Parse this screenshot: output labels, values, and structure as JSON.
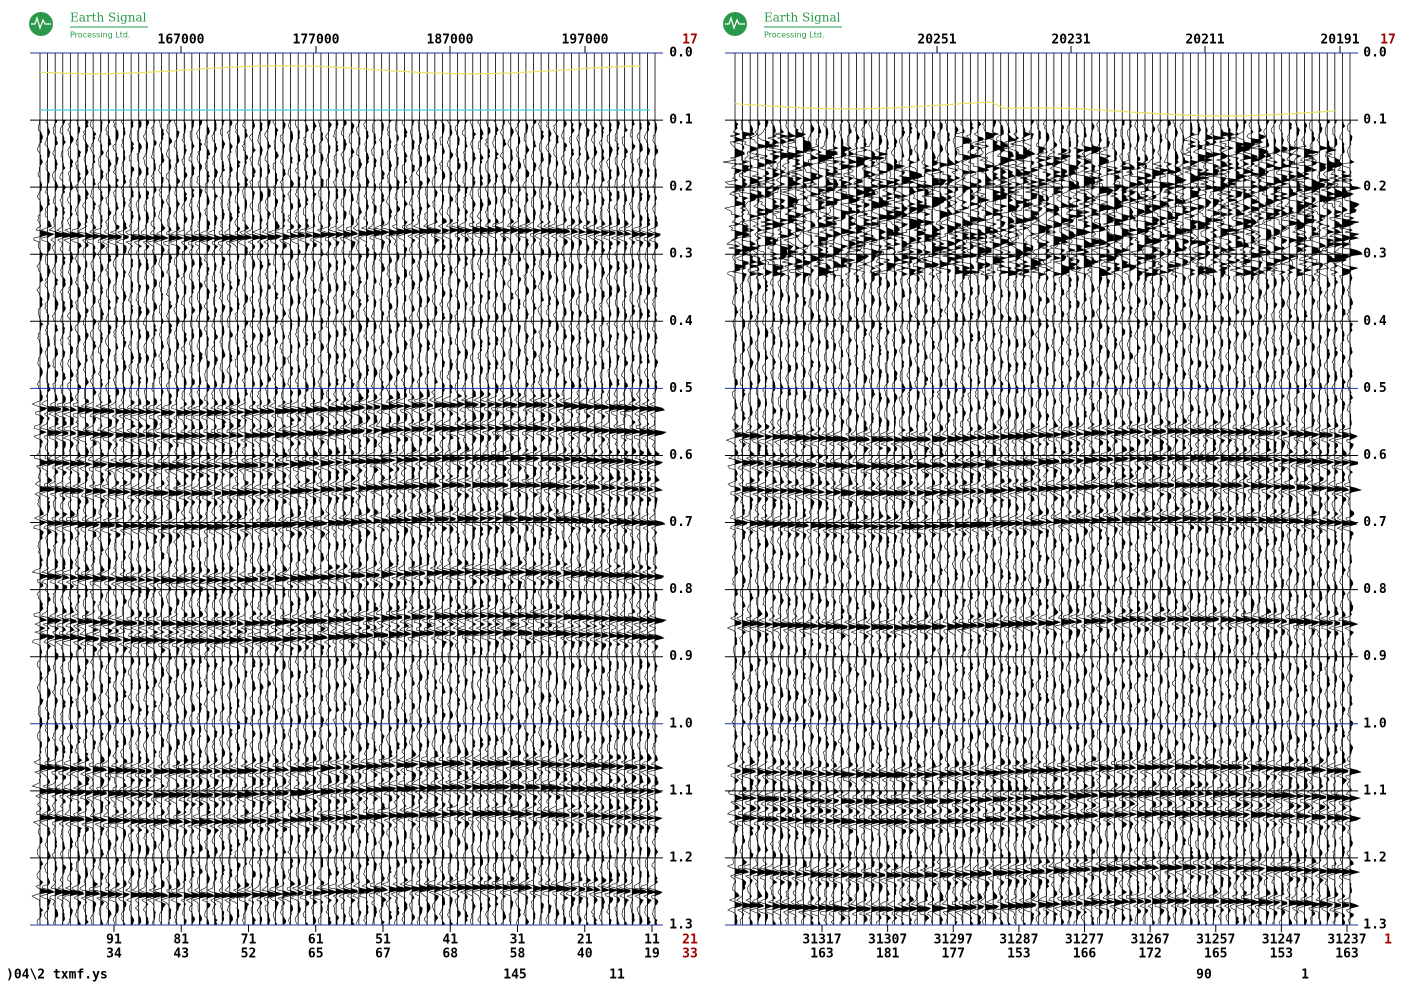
{
  "logo": {
    "name": "Earth Signal",
    "sub": "Processing Ltd."
  },
  "panels": [
    {
      "top_labels": [
        "167000",
        "177000",
        "187000",
        "197000"
      ],
      "corner_top": "17",
      "time_ticks": [
        "0.0",
        "0.1",
        "0.2",
        "0.3",
        "0.4",
        "0.5",
        "0.6",
        "0.7",
        "0.8",
        "0.9",
        "1.0",
        "1.1",
        "1.2",
        "1.3"
      ],
      "bottom_row1": [
        "91",
        "81",
        "71",
        "61",
        "51",
        "41",
        "31",
        "21",
        "11"
      ],
      "bottom_row2": [
        "34",
        "43",
        "52",
        "65",
        "67",
        "68",
        "58",
        "40",
        "19"
      ],
      "corner_bottom": [
        "21",
        "33"
      ]
    },
    {
      "top_labels": [
        "20251",
        "20231",
        "20211",
        "20191"
      ],
      "corner_top": "17",
      "time_ticks": [
        "0.0",
        "0.1",
        "0.2",
        "0.3",
        "0.4",
        "0.5",
        "0.6",
        "0.7",
        "0.8",
        "0.9",
        "1.0",
        "1.1",
        "1.2",
        "1.3"
      ],
      "bottom_row1": [
        "31317",
        "31307",
        "31297",
        "31287",
        "31277",
        "31267",
        "31257",
        "31247",
        "31237"
      ],
      "bottom_row2": [
        "163",
        "181",
        "177",
        "153",
        "166",
        "172",
        "165",
        "153",
        "163"
      ],
      "corner_bottom": [
        "1"
      ]
    }
  ],
  "footer": {
    "file": ")04\\2 txmf.ys",
    "left_a": "145",
    "left_b": "11",
    "right_a": "90",
    "right_b": "1"
  }
}
